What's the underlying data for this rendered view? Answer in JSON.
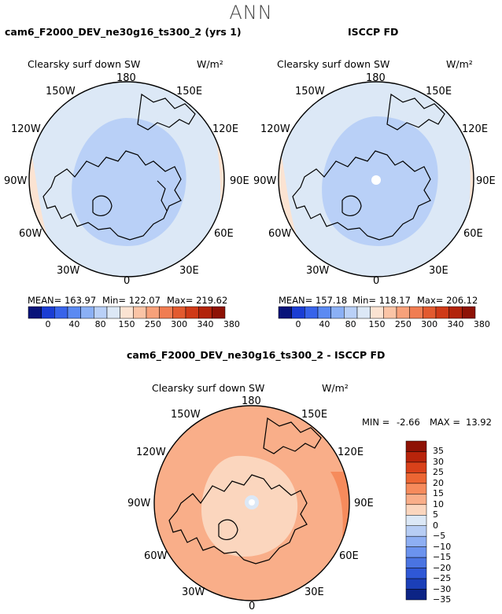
{
  "season": "ANN",
  "units_label": "W/m²",
  "variable_label": "Clearsky surf down SW",
  "panels": [
    {
      "title": "cam6_F2000_DEV_ne30g16_ts300_2 (yrs 1)",
      "stats": {
        "mean": "MEAN= 163.97",
        "min": "Min= 122.07",
        "max": "Max= 219.62"
      }
    },
    {
      "title": "ISCCP FD",
      "stats": {
        "mean": "MEAN= 157.18",
        "min": "Min= 118.17",
        "max": "Max= 206.12"
      }
    }
  ],
  "diff_panel": {
    "title": "cam6_F2000_DEV_ne30g16_ts300_2 - ISCCP FD",
    "min_label": "MIN =",
    "min_value": "-2.66",
    "max_label": "MAX =",
    "max_value": "13.92"
  },
  "lon_labels": [
    "180",
    "150E",
    "120E",
    "90E",
    "60E",
    "30E",
    "0",
    "30W",
    "60W",
    "90W",
    "120W",
    "150W"
  ],
  "abs_colorbar": {
    "colors": [
      "#08137a",
      "#1a3dd4",
      "#3763ea",
      "#5b8af2",
      "#8bb0f5",
      "#b9d0f7",
      "#dce8f6",
      "#fbe3d2",
      "#fac4a6",
      "#f7a17a",
      "#f07d52",
      "#e25a2f",
      "#cf3a17",
      "#b2230a",
      "#8e1205"
    ],
    "labels": [
      "0",
      "40",
      "80",
      "150",
      "250",
      "300",
      "340",
      "380"
    ]
  },
  "diff_colorbar": {
    "colors": [
      "#8e1205",
      "#b8240b",
      "#d9411a",
      "#ec6633",
      "#f68b5c",
      "#f9ae89",
      "#fbd6be",
      "#dce8f6",
      "#b7cdf4",
      "#8eaff3",
      "#6b93ee",
      "#4a74e2",
      "#2f58d6",
      "#1b3fb8",
      "#0c2485"
    ],
    "labels": [
      "35",
      "30",
      "25",
      "20",
      "15",
      "10",
      "5",
      "0",
      "−5",
      "−10",
      "−15",
      "−20",
      "−25",
      "−30",
      "−35"
    ]
  },
  "chart_data": [
    {
      "type": "heatmap",
      "projection": "north polar stereographic",
      "title": "cam6_F2000_DEV_ne30g16_ts300_2 (yrs 1)",
      "variable": "Clearsky surf down SW",
      "units": "W/m²",
      "stats": {
        "mean": 163.97,
        "min": 122.07,
        "max": 219.62
      },
      "contour_levels": [
        0,
        40,
        80,
        150,
        250,
        300,
        340,
        380
      ],
      "region_values": {
        "central_arctic": 140,
        "mid_latitudes": 155,
        "southern_edge_pacific": 200
      }
    },
    {
      "type": "heatmap",
      "projection": "north polar stereographic",
      "title": "ISCCP FD",
      "variable": "Clearsky surf down SW",
      "units": "W/m²",
      "stats": {
        "mean": 157.18,
        "min": 118.17,
        "max": 206.12
      },
      "contour_levels": [
        0,
        40,
        80,
        150,
        250,
        300,
        340,
        380
      ],
      "region_values": {
        "central_arctic": 135,
        "mid_latitudes": 150,
        "southern_edge_pacific": 200
      }
    },
    {
      "type": "heatmap",
      "projection": "north polar stereographic",
      "title": "cam6_F2000_DEV_ne30g16_ts300_2 - ISCCP FD",
      "variable": "Clearsky surf down SW",
      "units": "W/m²",
      "stats": {
        "min": -2.66,
        "max": 13.92
      },
      "contour_levels": [
        -35,
        -30,
        -25,
        -20,
        -15,
        -10,
        -5,
        0,
        5,
        10,
        15,
        20,
        25,
        30,
        35
      ],
      "region_values": {
        "pole": -2,
        "central_arctic": 3,
        "mid_latitudes": 8,
        "eastern_ocean": 12
      }
    }
  ]
}
